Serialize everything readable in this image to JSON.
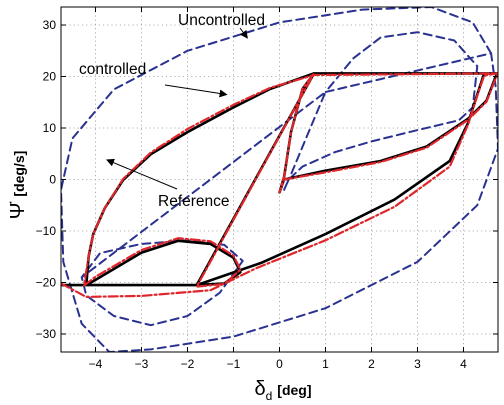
{
  "chart_data": {
    "type": "line",
    "xlabel": "δ",
    "xlabel_sub": "d",
    "xlabel_unit": "[deg]",
    "ylabel": "Ψ̇",
    "ylabel_unit": "[deg/s]",
    "xlim": [
      -4.75,
      4.75
    ],
    "ylim": [
      -33.5,
      33.5
    ],
    "xticks": [
      -4,
      -3,
      -2,
      -1,
      0,
      1,
      2,
      3,
      4
    ],
    "yticks": [
      -30,
      -20,
      -10,
      0,
      10,
      20,
      30
    ],
    "xtick_labels": [
      "−4",
      "−3",
      "−2",
      "−1",
      "0",
      "1",
      "2",
      "3",
      "4"
    ],
    "ytick_labels": [
      "−30",
      "−20",
      "−10",
      "0",
      "10",
      "20",
      "30"
    ],
    "grid": true,
    "annotations": [
      {
        "text": "Uncontrolled",
        "xy": [
          -0.7,
          27.5
        ],
        "arrow_from": [
          -2.05,
          29.7
        ]
      },
      {
        "text": "controlled",
        "xy": [
          -1.15,
          16.5
        ],
        "arrow_from": [
          -3.3,
          20.6
        ]
      },
      {
        "text": "Reference",
        "xy": [
          -3.75,
          3.8
        ],
        "arrow_from": [
          -2.3,
          -2.3
        ]
      }
    ],
    "series": [
      {
        "label": "Reference",
        "color": "#000000",
        "style": "solid",
        "points": [
          [
            -4.75,
            -20.5
          ],
          [
            -1.8,
            -20.5
          ],
          [
            -0.4,
            -16.2
          ],
          [
            1.0,
            -10.6
          ],
          [
            2.5,
            -3.9
          ],
          [
            3.7,
            3.6
          ],
          [
            4.1,
            11.0
          ],
          [
            4.3,
            16.5
          ],
          [
            4.45,
            20.6
          ],
          [
            4.75,
            20.6
          ],
          [
            0.75,
            20.6
          ],
          [
            -0.2,
            17.6
          ],
          [
            -1.0,
            14.0
          ],
          [
            -2.0,
            9.2
          ],
          [
            -2.8,
            4.9
          ],
          [
            -3.4,
            -0.1
          ],
          [
            -3.8,
            -5.6
          ],
          [
            -4.05,
            -10.6
          ],
          [
            -4.15,
            -15.0
          ],
          [
            -4.2,
            -20.5
          ],
          [
            -4.0,
            -19.5
          ],
          [
            -3.0,
            -14.2
          ],
          [
            -2.2,
            -11.9
          ],
          [
            -1.5,
            -12.5
          ],
          [
            -1.0,
            -15.2
          ],
          [
            -0.85,
            -18.0
          ],
          [
            -1.2,
            -20.2
          ],
          [
            -1.8,
            -20.5
          ],
          [
            0.75,
            20.6
          ],
          [
            0.5,
            17.6
          ],
          [
            0.25,
            9.2
          ],
          [
            0.1,
            0.5
          ],
          [
            0.0,
            -2.5
          ],
          [
            0.1,
            0.0
          ],
          [
            1.0,
            1.7
          ],
          [
            2.2,
            3.6
          ],
          [
            3.2,
            6.4
          ],
          [
            4.1,
            11.8
          ],
          [
            4.5,
            15.3
          ],
          [
            4.7,
            20.0
          ],
          [
            4.75,
            20.6
          ]
        ]
      },
      {
        "label": "controlled",
        "color": "#e0262a",
        "style": "dash-dot",
        "points": [
          [
            -4.75,
            -20.2
          ],
          [
            -4.2,
            -22.8
          ],
          [
            -3.0,
            -22.6
          ],
          [
            -1.5,
            -21.5
          ],
          [
            -0.5,
            -17.2
          ],
          [
            1.0,
            -11.8
          ],
          [
            2.5,
            -5.3
          ],
          [
            3.7,
            2.5
          ],
          [
            4.1,
            10.7
          ],
          [
            4.3,
            16.3
          ],
          [
            4.45,
            20.2
          ],
          [
            4.75,
            20.6
          ],
          [
            0.75,
            20.3
          ],
          [
            -0.2,
            17.8
          ],
          [
            -1.0,
            14.5
          ],
          [
            -2.0,
            9.8
          ],
          [
            -2.8,
            5.2
          ],
          [
            -3.4,
            0.1
          ],
          [
            -3.8,
            -5.6
          ],
          [
            -4.05,
            -10.6
          ],
          [
            -4.15,
            -15.0
          ],
          [
            -4.25,
            -20.6
          ],
          [
            -4.0,
            -18.9
          ],
          [
            -3.0,
            -13.7
          ],
          [
            -2.2,
            -11.4
          ],
          [
            -1.5,
            -12.0
          ],
          [
            -1.0,
            -14.8
          ],
          [
            -0.85,
            -17.5
          ],
          [
            -1.2,
            -20.3
          ],
          [
            -1.8,
            -20.8
          ],
          [
            0.75,
            20.6
          ],
          [
            0.5,
            17.6
          ],
          [
            0.25,
            9.2
          ],
          [
            0.1,
            0.5
          ],
          [
            0.0,
            -2.5
          ],
          [
            0.1,
            0.0
          ],
          [
            1.0,
            1.4
          ],
          [
            2.2,
            3.4
          ],
          [
            3.2,
            6.2
          ],
          [
            4.1,
            11.6
          ],
          [
            4.5,
            15.1
          ],
          [
            4.7,
            19.7
          ],
          [
            4.75,
            20.3
          ]
        ]
      },
      {
        "label": "Uncontrolled",
        "color": "#2a3291",
        "style": "dashed",
        "points": [
          [
            4.6,
            24.5
          ],
          [
            4.2,
            30.5
          ],
          [
            3.3,
            33.5
          ],
          [
            1.8,
            33.0
          ],
          [
            0.0,
            30.5
          ],
          [
            -2.0,
            25.0
          ],
          [
            -3.6,
            17.5
          ],
          [
            -4.5,
            8.0
          ],
          [
            -4.75,
            -2.0
          ],
          [
            -4.7,
            -16.0
          ],
          [
            -4.3,
            -28.0
          ],
          [
            -3.7,
            -33.5
          ],
          [
            -2.8,
            -33.0
          ],
          [
            -1.0,
            -30.5
          ],
          [
            1.0,
            -25.0
          ],
          [
            3.0,
            -16.0
          ],
          [
            4.3,
            -5.0
          ],
          [
            4.75,
            6.0
          ],
          [
            4.7,
            18.0
          ],
          [
            4.6,
            24.5
          ],
          [
            1.0,
            17.0
          ],
          [
            1.6,
            23.5
          ],
          [
            2.2,
            27.6
          ],
          [
            3.0,
            28.6
          ],
          [
            3.8,
            27.0
          ],
          [
            4.3,
            22.0
          ],
          [
            4.2,
            14.0
          ],
          [
            3.9,
            11.5
          ],
          [
            3.0,
            9.6
          ],
          [
            2.0,
            7.4
          ],
          [
            1.2,
            5.3
          ],
          [
            0.5,
            2.5
          ],
          [
            0.2,
            0.0
          ],
          [
            0.1,
            -2.0
          ],
          [
            0.25,
            1.0
          ],
          [
            0.6,
            8.5
          ],
          [
            1.0,
            17.0
          ],
          [
            -4.3,
            -19.0
          ],
          [
            -3.9,
            -14.3
          ],
          [
            -3.0,
            -12.5
          ],
          [
            -2.0,
            -11.8
          ],
          [
            -1.2,
            -12.7
          ],
          [
            -0.8,
            -15.8
          ],
          [
            -1.3,
            -22.0
          ],
          [
            -2.0,
            -26.5
          ],
          [
            -2.8,
            -28.3
          ],
          [
            -3.6,
            -26.5
          ],
          [
            -4.2,
            -22.5
          ],
          [
            -4.3,
            -19.0
          ]
        ]
      }
    ]
  }
}
